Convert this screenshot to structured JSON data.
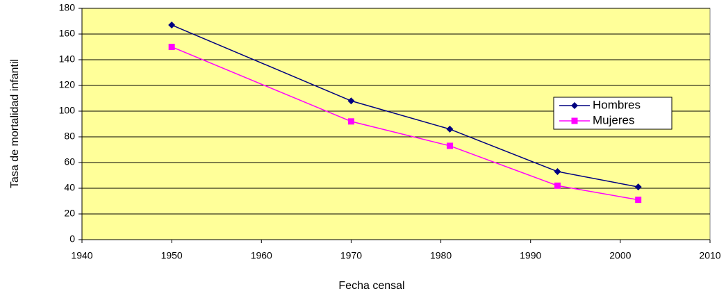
{
  "chart_data": {
    "type": "line",
    "x_label": "Fecha censal",
    "y_label": "Tasa de mortalidad infantil",
    "x": [
      1950,
      1970,
      1981,
      1993,
      2002
    ],
    "series": [
      {
        "name": "Hombres",
        "color": "#000080",
        "marker": "diamond",
        "values": [
          167,
          108,
          86,
          53,
          41
        ]
      },
      {
        "name": "Mujeres",
        "color": "#ff00ff",
        "marker": "square",
        "values": [
          150,
          92,
          73,
          42,
          31
        ]
      }
    ],
    "xlim": [
      1940,
      2010
    ],
    "xticks": [
      1940,
      1950,
      1960,
      1970,
      1980,
      1990,
      2000,
      2010
    ],
    "ylim": [
      0,
      180
    ],
    "yticks": [
      0,
      20,
      40,
      60,
      80,
      100,
      120,
      140,
      160,
      180
    ],
    "grid": true,
    "plot_background": "#ffff99",
    "legend": "right"
  }
}
